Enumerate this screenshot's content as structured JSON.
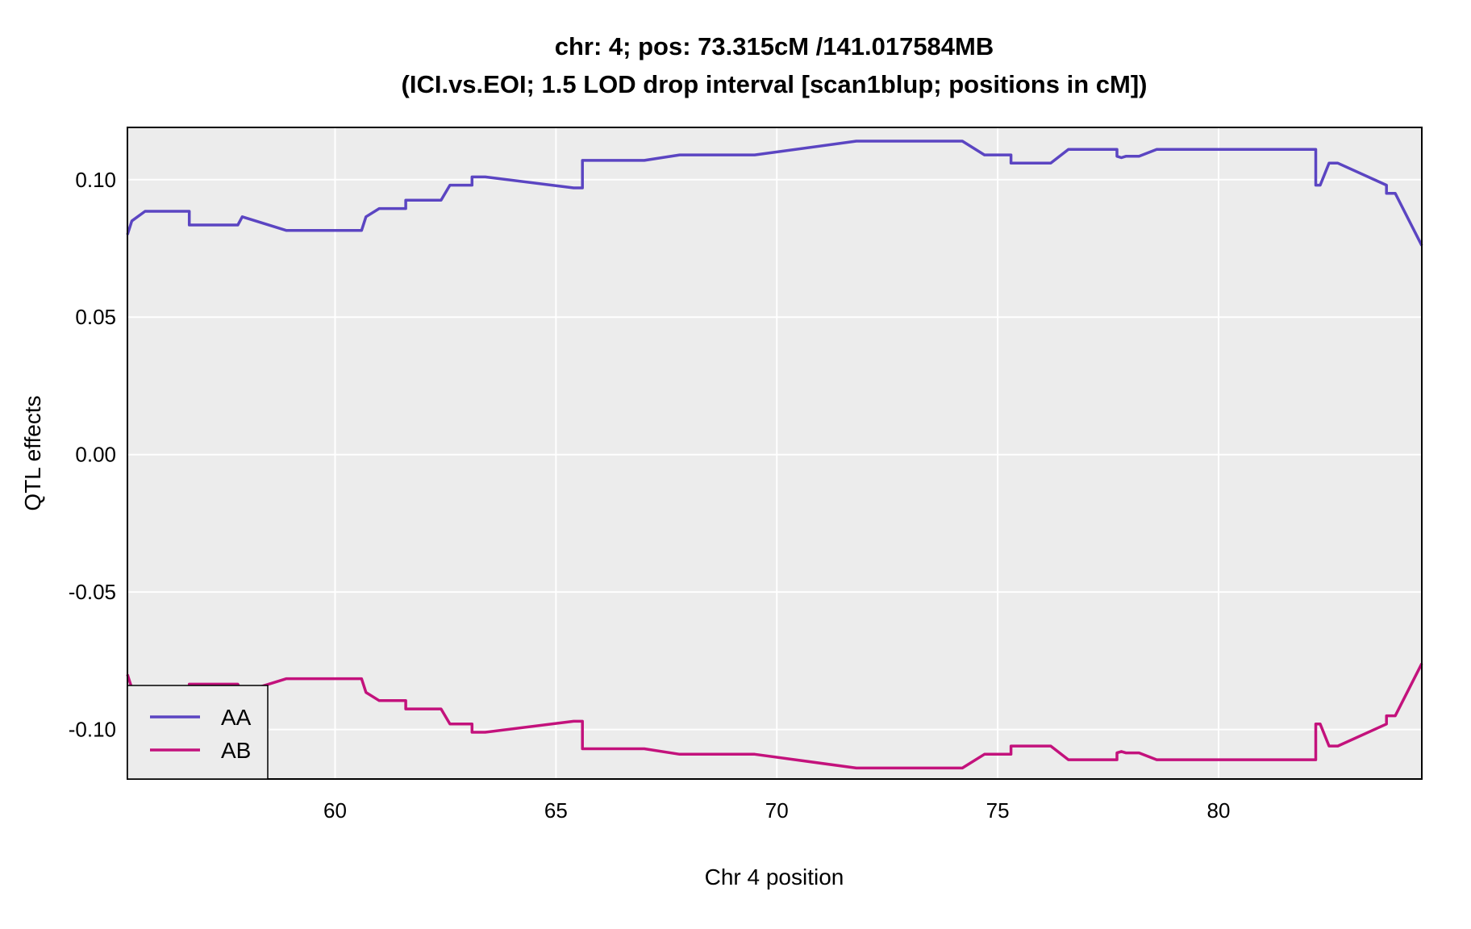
{
  "chart_data": {
    "type": "line",
    "title": "chr: 4; pos: 73.315cM /141.017584MB",
    "subtitle": "(ICI.vs.EOI; 1.5 LOD drop interval [scan1blup; positions in cM])",
    "xlabel": "Chr 4 position",
    "ylabel": "QTL effects",
    "xlim": [
      55.3,
      84.6
    ],
    "ylim": [
      -0.118,
      0.119
    ],
    "x_ticks": [
      60,
      65,
      70,
      75,
      80
    ],
    "x_tick_labels": [
      "60",
      "65",
      "70",
      "75",
      "80"
    ],
    "y_ticks": [
      0.1,
      0.05,
      0.0,
      -0.05,
      -0.1
    ],
    "y_tick_labels": [
      "0.10",
      "0.05",
      "0.00",
      "-0.05",
      "-0.10"
    ],
    "grid": true,
    "legend_position": "bottom-left",
    "panel_background": "#ececec",
    "series": [
      {
        "name": "AA",
        "color": "#5b45c2",
        "points": [
          [
            55.3,
            0.08
          ],
          [
            55.4,
            0.085
          ],
          [
            55.7,
            0.0885
          ],
          [
            56.2,
            0.0885
          ],
          [
            56.7,
            0.0885
          ],
          [
            56.7,
            0.0835
          ],
          [
            57.8,
            0.0835
          ],
          [
            57.9,
            0.0865
          ],
          [
            58.9,
            0.0815
          ],
          [
            59.6,
            0.0815
          ],
          [
            60.6,
            0.0815
          ],
          [
            60.7,
            0.0865
          ],
          [
            61.0,
            0.0895
          ],
          [
            61.6,
            0.0895
          ],
          [
            61.6,
            0.0925
          ],
          [
            62.4,
            0.0925
          ],
          [
            62.6,
            0.098
          ],
          [
            63.1,
            0.098
          ],
          [
            63.1,
            0.101
          ],
          [
            63.4,
            0.101
          ],
          [
            65.4,
            0.097
          ],
          [
            65.6,
            0.097
          ],
          [
            65.6,
            0.107
          ],
          [
            67.0,
            0.107
          ],
          [
            67.8,
            0.109
          ],
          [
            69.5,
            0.109
          ],
          [
            71.8,
            0.114
          ],
          [
            74.2,
            0.114
          ],
          [
            74.7,
            0.109
          ],
          [
            75.3,
            0.109
          ],
          [
            75.3,
            0.106
          ],
          [
            76.2,
            0.106
          ],
          [
            76.6,
            0.111
          ],
          [
            77.7,
            0.111
          ],
          [
            77.7,
            0.1085
          ],
          [
            77.8,
            0.108
          ],
          [
            77.9,
            0.1085
          ],
          [
            78.2,
            0.1085
          ],
          [
            78.6,
            0.111
          ],
          [
            79.5,
            0.111
          ],
          [
            81.0,
            0.111
          ],
          [
            82.2,
            0.111
          ],
          [
            82.2,
            0.098
          ],
          [
            82.3,
            0.098
          ],
          [
            82.5,
            0.106
          ],
          [
            82.7,
            0.106
          ],
          [
            83.8,
            0.098
          ],
          [
            83.8,
            0.095
          ],
          [
            84.0,
            0.095
          ],
          [
            84.6,
            0.076
          ]
        ]
      },
      {
        "name": "AB",
        "color": "#c3127c",
        "points": [
          [
            55.3,
            -0.08
          ],
          [
            55.4,
            -0.085
          ],
          [
            55.7,
            -0.0885
          ],
          [
            56.2,
            -0.0885
          ],
          [
            56.7,
            -0.0885
          ],
          [
            56.7,
            -0.0835
          ],
          [
            57.8,
            -0.0835
          ],
          [
            57.9,
            -0.0865
          ],
          [
            58.9,
            -0.0815
          ],
          [
            59.6,
            -0.0815
          ],
          [
            60.6,
            -0.0815
          ],
          [
            60.7,
            -0.0865
          ],
          [
            61.0,
            -0.0895
          ],
          [
            61.6,
            -0.0895
          ],
          [
            61.6,
            -0.0925
          ],
          [
            62.4,
            -0.0925
          ],
          [
            62.6,
            -0.098
          ],
          [
            63.1,
            -0.098
          ],
          [
            63.1,
            -0.101
          ],
          [
            63.4,
            -0.101
          ],
          [
            65.4,
            -0.097
          ],
          [
            65.6,
            -0.097
          ],
          [
            65.6,
            -0.107
          ],
          [
            67.0,
            -0.107
          ],
          [
            67.8,
            -0.109
          ],
          [
            69.5,
            -0.109
          ],
          [
            71.8,
            -0.114
          ],
          [
            74.2,
            -0.114
          ],
          [
            74.7,
            -0.109
          ],
          [
            75.3,
            -0.109
          ],
          [
            75.3,
            -0.106
          ],
          [
            76.2,
            -0.106
          ],
          [
            76.6,
            -0.111
          ],
          [
            77.7,
            -0.111
          ],
          [
            77.7,
            -0.1085
          ],
          [
            77.8,
            -0.108
          ],
          [
            77.9,
            -0.1085
          ],
          [
            78.2,
            -0.1085
          ],
          [
            78.6,
            -0.111
          ],
          [
            79.5,
            -0.111
          ],
          [
            81.0,
            -0.111
          ],
          [
            82.2,
            -0.111
          ],
          [
            82.2,
            -0.098
          ],
          [
            82.3,
            -0.098
          ],
          [
            82.5,
            -0.106
          ],
          [
            82.7,
            -0.106
          ],
          [
            83.8,
            -0.098
          ],
          [
            83.8,
            -0.095
          ],
          [
            84.0,
            -0.095
          ],
          [
            84.6,
            -0.076
          ]
        ]
      }
    ]
  }
}
